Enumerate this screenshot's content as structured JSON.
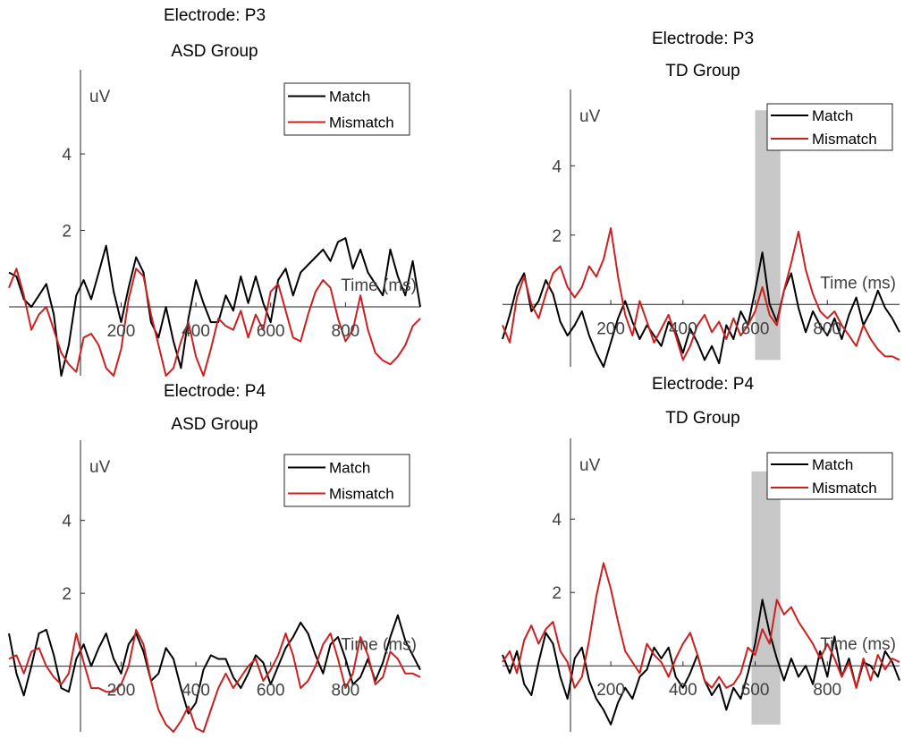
{
  "chart_data": [
    {
      "type": "line",
      "title": [
        "Electrode: P3",
        "ASD Group"
      ],
      "xlabel": "Time (ms)",
      "ylabel": "uV",
      "xlim": [
        -100,
        1000
      ],
      "ylim": [
        -1.8,
        6.2
      ],
      "xticks": [
        200,
        400,
        600,
        800
      ],
      "yticks": [
        2,
        4
      ],
      "legend": "top-right",
      "grid": false,
      "highlight": null,
      "series": [
        {
          "name": "Match",
          "color": "#000000",
          "x": [
            -100,
            -80,
            -60,
            -40,
            -20,
            0,
            20,
            40,
            60,
            80,
            100,
            120,
            140,
            160,
            180,
            200,
            220,
            240,
            260,
            280,
            300,
            320,
            340,
            360,
            380,
            400,
            420,
            440,
            460,
            480,
            500,
            520,
            540,
            560,
            580,
            600,
            620,
            640,
            660,
            680,
            700,
            720,
            740,
            760,
            780,
            800,
            820,
            840,
            860,
            880,
            900,
            920,
            940,
            960,
            980,
            1000
          ],
          "y": [
            0.9,
            0.8,
            0.2,
            0.0,
            0.3,
            0.6,
            -0.2,
            -1.8,
            -1.0,
            0.3,
            0.7,
            0.2,
            0.9,
            1.6,
            0.4,
            -0.4,
            0.5,
            1.3,
            0.9,
            -0.4,
            -0.8,
            0.0,
            -0.9,
            -1.6,
            -0.3,
            0.7,
            0.1,
            -0.4,
            -0.4,
            0.3,
            -0.1,
            0.8,
            0.1,
            0.8,
            0.1,
            -0.4,
            0.7,
            1.0,
            0.3,
            0.9,
            1.1,
            1.3,
            1.5,
            1.2,
            1.7,
            1.8,
            1.0,
            1.5,
            0.9,
            0.6,
            0.3,
            1.5,
            0.8,
            0.3,
            1.2,
            0.0
          ]
        },
        {
          "name": "Mismatch",
          "color": "#cc2020",
          "x": [
            -100,
            -80,
            -60,
            -40,
            -20,
            0,
            20,
            40,
            60,
            80,
            100,
            120,
            140,
            160,
            180,
            200,
            220,
            240,
            260,
            280,
            300,
            320,
            340,
            360,
            380,
            400,
            420,
            440,
            460,
            480,
            500,
            520,
            540,
            560,
            580,
            600,
            620,
            640,
            660,
            680,
            700,
            720,
            740,
            760,
            780,
            800,
            820,
            840,
            860,
            880,
            900,
            920,
            940,
            960,
            980,
            1000
          ],
          "y": [
            0.5,
            1.0,
            0.3,
            -0.6,
            -0.2,
            0.0,
            -0.6,
            -1.2,
            -1.5,
            -1.7,
            -0.8,
            -0.7,
            -1.0,
            -1.6,
            -1.8,
            -1.1,
            0.2,
            1.0,
            0.8,
            -0.2,
            -1.0,
            -1.8,
            -1.6,
            -0.9,
            -0.4,
            -1.3,
            -1.9,
            -1.1,
            -0.3,
            -0.5,
            -0.6,
            -0.1,
            -0.8,
            -0.2,
            -0.6,
            0.4,
            0.6,
            -0.1,
            -0.8,
            -0.9,
            -0.2,
            0.4,
            0.7,
            0.5,
            -0.3,
            -0.9,
            -0.6,
            0.3,
            -0.6,
            -1.2,
            -1.4,
            -1.5,
            -1.3,
            -1.0,
            -0.5,
            -0.3
          ]
        }
      ]
    },
    {
      "type": "line",
      "title": [
        "Electrode: P3",
        "TD Group"
      ],
      "xlabel": "Time (ms)",
      "ylabel": "uV",
      "xlim": [
        -100,
        1000
      ],
      "ylim": [
        -1.8,
        6.2
      ],
      "xticks": [
        200,
        400,
        600,
        800
      ],
      "yticks": [
        2,
        4
      ],
      "legend": "top-right",
      "grid": false,
      "highlight": {
        "x0": 600,
        "x1": 670,
        "y0": -1.6,
        "y1": 5.6
      },
      "series": [
        {
          "name": "Match",
          "color": "#000000",
          "x": [
            -100,
            -80,
            -60,
            -40,
            -20,
            0,
            20,
            40,
            60,
            80,
            100,
            120,
            140,
            160,
            180,
            200,
            220,
            240,
            260,
            280,
            300,
            320,
            340,
            360,
            380,
            400,
            420,
            440,
            460,
            480,
            500,
            520,
            540,
            560,
            580,
            600,
            620,
            640,
            660,
            680,
            700,
            720,
            740,
            760,
            780,
            800,
            820,
            840,
            860,
            880,
            900,
            920,
            940,
            960,
            980,
            1000
          ],
          "y": [
            -1.0,
            -0.3,
            0.5,
            0.9,
            -0.2,
            0.1,
            0.7,
            0.3,
            -0.5,
            -0.9,
            -0.6,
            -0.2,
            -0.9,
            -1.4,
            -1.8,
            -1.1,
            -0.4,
            0.1,
            -0.5,
            -1.0,
            -0.6,
            -0.9,
            -1.2,
            -0.5,
            -0.8,
            -1.4,
            -0.7,
            -1.1,
            -1.6,
            -1.2,
            -1.7,
            -0.6,
            -1.0,
            -0.2,
            -0.6,
            0.4,
            1.5,
            0.0,
            -0.5,
            0.4,
            0.9,
            -0.1,
            -0.8,
            -0.2,
            -0.6,
            -0.9,
            -0.4,
            -1.0,
            -0.3,
            0.2,
            -0.6,
            -0.2,
            0.4,
            -0.1,
            -0.4,
            -0.8
          ]
        },
        {
          "name": "Mismatch",
          "color": "#cc2020",
          "x": [
            -100,
            -80,
            -60,
            -40,
            -20,
            0,
            20,
            40,
            60,
            80,
            100,
            120,
            140,
            160,
            180,
            200,
            220,
            240,
            260,
            280,
            300,
            320,
            340,
            360,
            380,
            400,
            420,
            440,
            460,
            480,
            500,
            520,
            540,
            560,
            580,
            600,
            620,
            640,
            660,
            680,
            700,
            720,
            740,
            760,
            780,
            800,
            820,
            840,
            860,
            880,
            900,
            920,
            940,
            960,
            980,
            1000
          ],
          "y": [
            -0.6,
            -1.1,
            0.2,
            0.8,
            0.0,
            -0.4,
            0.3,
            0.9,
            1.1,
            0.5,
            0.2,
            0.5,
            1.1,
            0.8,
            1.3,
            2.2,
            0.8,
            -0.3,
            -0.9,
            0.1,
            -0.5,
            -1.1,
            -0.7,
            -0.3,
            -0.9,
            -1.6,
            -1.2,
            -0.6,
            -0.3,
            -0.8,
            -0.5,
            -1.0,
            -0.4,
            -0.9,
            -0.6,
            -0.2,
            0.5,
            -0.3,
            -0.6,
            0.4,
            1.2,
            2.1,
            1.0,
            0.3,
            -0.2,
            -0.4,
            -0.2,
            -0.6,
            -0.9,
            -1.2,
            -0.6,
            -1.0,
            -1.3,
            -1.5,
            -1.5,
            -1.6
          ]
        }
      ]
    },
    {
      "type": "line",
      "title": [
        "Electrode: P4",
        "ASD Group"
      ],
      "xlabel": "Time (ms)",
      "ylabel": "uV",
      "xlim": [
        -100,
        1000
      ],
      "ylim": [
        -1.8,
        6.2
      ],
      "xticks": [
        200,
        400,
        600,
        800
      ],
      "yticks": [
        2,
        4
      ],
      "legend": "top-right",
      "grid": false,
      "highlight": null,
      "series": [
        {
          "name": "Match",
          "color": "#000000",
          "x": [
            -100,
            -80,
            -60,
            -40,
            -20,
            0,
            20,
            40,
            60,
            80,
            100,
            120,
            140,
            160,
            180,
            200,
            220,
            240,
            260,
            280,
            300,
            320,
            340,
            360,
            380,
            400,
            420,
            440,
            460,
            480,
            500,
            520,
            540,
            560,
            580,
            600,
            620,
            640,
            660,
            680,
            700,
            720,
            740,
            760,
            780,
            800,
            820,
            840,
            860,
            880,
            900,
            920,
            940,
            960,
            980,
            1000
          ],
          "y": [
            0.9,
            -0.2,
            -0.8,
            0.0,
            0.9,
            1.0,
            0.3,
            -0.6,
            -0.7,
            0.2,
            0.6,
            0.0,
            0.5,
            0.9,
            0.2,
            -0.2,
            0.6,
            0.9,
            0.4,
            -0.4,
            -0.2,
            0.5,
            0.2,
            -0.6,
            -1.3,
            -1.0,
            -0.1,
            0.3,
            0.2,
            0.2,
            -0.3,
            -0.6,
            -0.2,
            0.3,
            0.1,
            -0.5,
            0.0,
            0.5,
            0.8,
            1.2,
            0.9,
            0.3,
            -0.2,
            0.6,
            0.8,
            0.2,
            -0.5,
            -0.3,
            0.2,
            -0.4,
            0.1,
            0.8,
            1.4,
            0.7,
            0.3,
            -0.1
          ]
        },
        {
          "name": "Mismatch",
          "color": "#cc2020",
          "x": [
            -100,
            -80,
            -60,
            -40,
            -20,
            0,
            20,
            40,
            60,
            80,
            100,
            120,
            140,
            160,
            180,
            200,
            220,
            240,
            260,
            280,
            300,
            320,
            340,
            360,
            380,
            400,
            420,
            440,
            460,
            480,
            500,
            520,
            540,
            560,
            580,
            600,
            620,
            640,
            660,
            680,
            700,
            720,
            740,
            760,
            780,
            800,
            820,
            840,
            860,
            880,
            900,
            920,
            940,
            960,
            980,
            1000
          ],
          "y": [
            0.2,
            0.3,
            -0.2,
            0.4,
            0.5,
            0.0,
            -0.3,
            -0.5,
            -0.2,
            0.9,
            0.1,
            -0.6,
            -0.6,
            -0.7,
            -0.7,
            -0.5,
            0.0,
            1.0,
            0.6,
            -0.4,
            -1.2,
            -1.6,
            -1.8,
            -1.5,
            -1.1,
            -1.7,
            -1.9,
            -1.2,
            -0.6,
            -0.2,
            -0.6,
            -0.3,
            0.0,
            0.2,
            -0.4,
            -0.1,
            0.3,
            0.9,
            0.3,
            -0.6,
            -0.4,
            0.0,
            0.6,
            0.9,
            0.2,
            -0.6,
            -0.2,
            0.8,
            0.3,
            -0.5,
            -0.3,
            0.4,
            0.2,
            -0.2,
            -0.2,
            -0.3
          ]
        }
      ]
    },
    {
      "type": "line",
      "title": [
        "Electrode: P4",
        "TD Group"
      ],
      "xlabel": "Time (ms)",
      "ylabel": "uV",
      "xlim": [
        -100,
        1000
      ],
      "ylim": [
        -1.8,
        6.2
      ],
      "xticks": [
        200,
        400,
        600,
        800
      ],
      "yticks": [
        2,
        4
      ],
      "legend": "top-right",
      "grid": false,
      "highlight": {
        "x0": 590,
        "x1": 670,
        "y0": -1.6,
        "y1": 5.3
      },
      "series": [
        {
          "name": "Match",
          "color": "#000000",
          "x": [
            -100,
            -80,
            -60,
            -40,
            -20,
            0,
            20,
            40,
            60,
            80,
            100,
            120,
            140,
            160,
            180,
            200,
            220,
            240,
            260,
            280,
            300,
            320,
            340,
            360,
            380,
            400,
            420,
            440,
            460,
            480,
            500,
            520,
            540,
            560,
            580,
            600,
            620,
            640,
            660,
            680,
            700,
            720,
            740,
            760,
            780,
            800,
            820,
            840,
            860,
            880,
            900,
            920,
            940,
            960,
            980,
            1000
          ],
          "y": [
            0.3,
            -0.2,
            0.4,
            -0.5,
            -0.8,
            0.1,
            0.9,
            0.6,
            -0.3,
            -0.9,
            0.2,
            0.5,
            -0.4,
            -0.9,
            -1.2,
            -1.6,
            -1.0,
            -0.6,
            -0.9,
            -0.3,
            -0.1,
            0.5,
            0.2,
            0.5,
            -0.3,
            -0.6,
            -0.2,
            0.3,
            -0.4,
            -0.8,
            -0.5,
            -1.2,
            -0.6,
            -0.9,
            -0.2,
            0.6,
            1.8,
            0.9,
            0.2,
            -0.4,
            0.2,
            -0.3,
            0.0,
            -0.5,
            0.4,
            -0.3,
            0.8,
            -0.3,
            0.2,
            -0.6,
            0.1,
            0.0,
            -0.3,
            0.4,
            0.1,
            -0.4
          ]
        },
        {
          "name": "Mismatch",
          "color": "#cc2020",
          "x": [
            -100,
            -80,
            -60,
            -40,
            -20,
            0,
            20,
            40,
            60,
            80,
            100,
            120,
            140,
            160,
            180,
            200,
            220,
            240,
            260,
            280,
            300,
            320,
            340,
            360,
            380,
            400,
            420,
            440,
            460,
            480,
            500,
            520,
            540,
            560,
            580,
            600,
            620,
            640,
            660,
            680,
            700,
            720,
            740,
            760,
            780,
            800,
            820,
            840,
            860,
            880,
            900,
            920,
            940,
            960,
            980,
            1000
          ],
          "y": [
            0.1,
            0.4,
            -0.2,
            0.7,
            1.1,
            0.6,
            1.0,
            1.2,
            0.4,
            0.1,
            -0.6,
            -0.3,
            0.7,
            1.9,
            2.8,
            2.1,
            1.2,
            0.4,
            0.1,
            -0.2,
            0.6,
            0.3,
            0.1,
            -0.3,
            0.2,
            0.6,
            0.9,
            0.3,
            -0.4,
            -0.6,
            -0.3,
            -0.6,
            -0.5,
            -0.2,
            0.5,
            0.3,
            1.0,
            0.6,
            1.8,
            1.4,
            1.6,
            1.2,
            0.9,
            0.6,
            0.2,
            0.6,
            0.2,
            -0.3,
            0.1,
            -0.6,
            0.2,
            -0.4,
            0.3,
            -0.1,
            0.2,
            0.1
          ]
        }
      ]
    }
  ]
}
